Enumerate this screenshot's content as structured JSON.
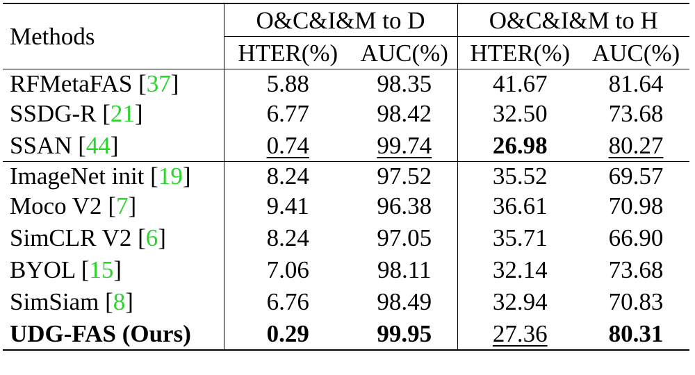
{
  "table": {
    "methods_header": "Methods",
    "groups": [
      {
        "label": "O&C&I&M to D",
        "subheaders": [
          "HTER(%)",
          "AUC(%)"
        ]
      },
      {
        "label": "O&C&I&M to H",
        "subheaders": [
          "HTER(%)",
          "AUC(%)"
        ]
      }
    ],
    "sections": [
      [
        {
          "name": "RFMetaFAS",
          "cite": "37",
          "values": [
            "5.88",
            "98.35",
            "41.67",
            "81.64"
          ],
          "bold": [
            false,
            false,
            false,
            false
          ],
          "underline": [
            false,
            false,
            false,
            false
          ]
        },
        {
          "name": "SSDG-R",
          "cite": "21",
          "values": [
            "6.77",
            "98.42",
            "32.50",
            "73.68"
          ],
          "bold": [
            false,
            false,
            false,
            false
          ],
          "underline": [
            false,
            false,
            false,
            false
          ]
        },
        {
          "name": "SSAN",
          "cite": "44",
          "values": [
            "0.74",
            "99.74",
            "26.98",
            "80.27"
          ],
          "bold": [
            false,
            false,
            true,
            false
          ],
          "underline": [
            true,
            true,
            false,
            true
          ]
        }
      ],
      [
        {
          "name": "ImageNet init",
          "cite": "19",
          "values": [
            "8.24",
            "97.52",
            "35.52",
            "69.57"
          ],
          "bold": [
            false,
            false,
            false,
            false
          ],
          "underline": [
            false,
            false,
            false,
            false
          ]
        },
        {
          "name": "Moco V2",
          "cite": "7",
          "values": [
            "9.41",
            "96.38",
            "36.61",
            "70.98"
          ],
          "bold": [
            false,
            false,
            false,
            false
          ],
          "underline": [
            false,
            false,
            false,
            false
          ]
        },
        {
          "name": "SimCLR V2",
          "cite": "6",
          "values": [
            "8.24",
            "97.05",
            "35.71",
            "66.90"
          ],
          "bold": [
            false,
            false,
            false,
            false
          ],
          "underline": [
            false,
            false,
            false,
            false
          ]
        },
        {
          "name": "BYOL",
          "cite": "15",
          "values": [
            "7.06",
            "98.11",
            "32.14",
            "73.68"
          ],
          "bold": [
            false,
            false,
            false,
            false
          ],
          "underline": [
            false,
            false,
            false,
            false
          ]
        },
        {
          "name": "SimSiam",
          "cite": "8",
          "values": [
            "6.76",
            "98.49",
            "32.94",
            "70.83"
          ],
          "bold": [
            false,
            false,
            false,
            false
          ],
          "underline": [
            false,
            false,
            false,
            false
          ]
        },
        {
          "name": "UDG-FAS (Ours)",
          "cite": "",
          "name_bold": true,
          "values": [
            "0.29",
            "99.95",
            "27.36",
            "80.31"
          ],
          "bold": [
            true,
            true,
            false,
            true
          ],
          "underline": [
            false,
            false,
            true,
            false
          ]
        }
      ]
    ],
    "colors": {
      "citation": "#2bd42b",
      "text": "#000000",
      "rules": "#000000"
    }
  }
}
